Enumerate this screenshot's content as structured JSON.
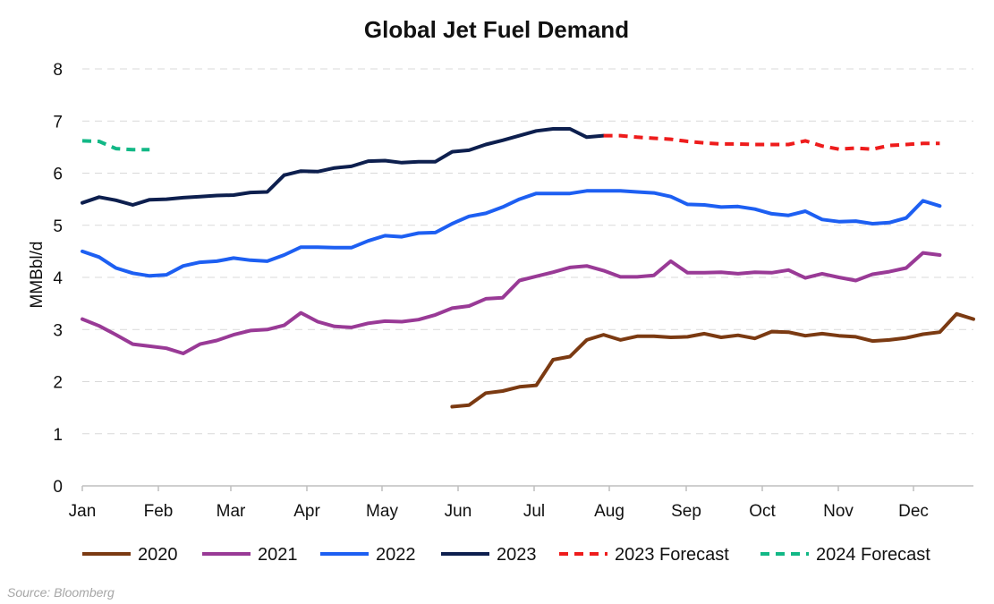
{
  "chart_data": {
    "type": "line",
    "title": "Global Jet Fuel Demand",
    "xlabel": "",
    "ylabel": "MMBbl/d",
    "ylim": [
      0,
      8
    ],
    "yticks": [
      0,
      1,
      2,
      3,
      4,
      5,
      6,
      7,
      8
    ],
    "month_labels": [
      "Jan",
      "Feb",
      "Mar",
      "Apr",
      "May",
      "Jun",
      "Jul",
      "Aug",
      "Sep",
      "Oct",
      "Nov",
      "Dec"
    ],
    "x_unit": "week of year",
    "grid": "horizontal dashed",
    "legend_position": "bottom",
    "source": "Source: Bloomberg",
    "series": [
      {
        "name": "2020",
        "color": "#7b3a12",
        "dashed": false,
        "points": [
          [
            23,
            1.52
          ],
          [
            24,
            1.55
          ],
          [
            25,
            1.78
          ],
          [
            26,
            1.82
          ],
          [
            27,
            1.9
          ],
          [
            28,
            1.93
          ],
          [
            29,
            2.42
          ],
          [
            30,
            2.48
          ],
          [
            31,
            2.8
          ],
          [
            32,
            2.9
          ],
          [
            33,
            2.8
          ],
          [
            34,
            2.87
          ],
          [
            35,
            2.87
          ],
          [
            36,
            2.85
          ],
          [
            37,
            2.86
          ],
          [
            38,
            2.92
          ],
          [
            39,
            2.85
          ],
          [
            40,
            2.89
          ],
          [
            41,
            2.83
          ],
          [
            42,
            2.96
          ],
          [
            43,
            2.95
          ],
          [
            44,
            2.88
          ],
          [
            45,
            2.92
          ],
          [
            46,
            2.88
          ],
          [
            47,
            2.86
          ],
          [
            48,
            2.78
          ],
          [
            49,
            2.8
          ],
          [
            50,
            2.84
          ],
          [
            51,
            2.91
          ],
          [
            52,
            2.95
          ],
          [
            53,
            3.3
          ],
          [
            54,
            3.2
          ]
        ]
      },
      {
        "name": "2021",
        "color": "#993a96",
        "dashed": false,
        "points": [
          [
            1,
            3.2
          ],
          [
            2,
            3.07
          ],
          [
            3,
            2.9
          ],
          [
            4,
            2.72
          ],
          [
            5,
            2.68
          ],
          [
            6,
            2.64
          ],
          [
            7,
            2.54
          ],
          [
            8,
            2.72
          ],
          [
            9,
            2.79
          ],
          [
            10,
            2.9
          ],
          [
            11,
            2.98
          ],
          [
            12,
            3.0
          ],
          [
            13,
            3.08
          ],
          [
            14,
            3.32
          ],
          [
            15,
            3.15
          ],
          [
            16,
            3.06
          ],
          [
            17,
            3.04
          ],
          [
            18,
            3.12
          ],
          [
            19,
            3.16
          ],
          [
            20,
            3.15
          ],
          [
            21,
            3.19
          ],
          [
            22,
            3.28
          ],
          [
            23,
            3.41
          ],
          [
            24,
            3.45
          ],
          [
            25,
            3.59
          ],
          [
            26,
            3.61
          ],
          [
            27,
            3.94
          ],
          [
            28,
            4.02
          ],
          [
            29,
            4.1
          ],
          [
            30,
            4.19
          ],
          [
            31,
            4.22
          ],
          [
            32,
            4.13
          ],
          [
            33,
            4.01
          ],
          [
            34,
            4.01
          ],
          [
            35,
            4.04
          ],
          [
            36,
            4.31
          ],
          [
            37,
            4.09
          ],
          [
            38,
            4.09
          ],
          [
            39,
            4.1
          ],
          [
            40,
            4.07
          ],
          [
            41,
            4.1
          ],
          [
            42,
            4.09
          ],
          [
            43,
            4.14
          ],
          [
            44,
            3.99
          ],
          [
            45,
            4.07
          ],
          [
            46,
            4.0
          ],
          [
            47,
            3.94
          ],
          [
            48,
            4.06
          ],
          [
            49,
            4.11
          ],
          [
            50,
            4.18
          ],
          [
            51,
            4.47
          ],
          [
            52,
            4.43
          ]
        ]
      },
      {
        "name": "2022",
        "color": "#1d5ff2",
        "dashed": false,
        "points": [
          [
            1,
            4.5
          ],
          [
            2,
            4.39
          ],
          [
            3,
            4.18
          ],
          [
            4,
            4.08
          ],
          [
            5,
            4.03
          ],
          [
            6,
            4.05
          ],
          [
            7,
            4.22
          ],
          [
            8,
            4.29
          ],
          [
            9,
            4.31
          ],
          [
            10,
            4.37
          ],
          [
            11,
            4.33
          ],
          [
            12,
            4.31
          ],
          [
            13,
            4.43
          ],
          [
            14,
            4.58
          ],
          [
            15,
            4.58
          ],
          [
            16,
            4.57
          ],
          [
            17,
            4.57
          ],
          [
            18,
            4.7
          ],
          [
            19,
            4.8
          ],
          [
            20,
            4.78
          ],
          [
            21,
            4.85
          ],
          [
            22,
            4.86
          ],
          [
            23,
            5.03
          ],
          [
            24,
            5.17
          ],
          [
            25,
            5.23
          ],
          [
            26,
            5.35
          ],
          [
            27,
            5.5
          ],
          [
            28,
            5.61
          ],
          [
            29,
            5.61
          ],
          [
            30,
            5.61
          ],
          [
            31,
            5.66
          ],
          [
            32,
            5.66
          ],
          [
            33,
            5.66
          ],
          [
            34,
            5.64
          ],
          [
            35,
            5.62
          ],
          [
            36,
            5.55
          ],
          [
            37,
            5.4
          ],
          [
            38,
            5.39
          ],
          [
            39,
            5.35
          ],
          [
            40,
            5.36
          ],
          [
            41,
            5.31
          ],
          [
            42,
            5.22
          ],
          [
            43,
            5.19
          ],
          [
            44,
            5.27
          ],
          [
            45,
            5.11
          ],
          [
            46,
            5.07
          ],
          [
            47,
            5.08
          ],
          [
            48,
            5.03
          ],
          [
            49,
            5.05
          ],
          [
            50,
            5.14
          ],
          [
            51,
            5.47
          ],
          [
            52,
            5.37
          ]
        ]
      },
      {
        "name": "2023",
        "color": "#0d1f4e",
        "dashed": false,
        "points": [
          [
            1,
            5.43
          ],
          [
            2,
            5.54
          ],
          [
            3,
            5.48
          ],
          [
            4,
            5.39
          ],
          [
            5,
            5.49
          ],
          [
            6,
            5.5
          ],
          [
            7,
            5.53
          ],
          [
            8,
            5.55
          ],
          [
            9,
            5.57
          ],
          [
            10,
            5.58
          ],
          [
            11,
            5.63
          ],
          [
            12,
            5.64
          ],
          [
            13,
            5.96
          ],
          [
            14,
            6.04
          ],
          [
            15,
            6.03
          ],
          [
            16,
            6.1
          ],
          [
            17,
            6.13
          ],
          [
            18,
            6.23
          ],
          [
            19,
            6.24
          ],
          [
            20,
            6.2
          ],
          [
            21,
            6.22
          ],
          [
            22,
            6.22
          ],
          [
            23,
            6.41
          ],
          [
            24,
            6.44
          ],
          [
            25,
            6.55
          ],
          [
            26,
            6.63
          ],
          [
            27,
            6.72
          ],
          [
            28,
            6.81
          ],
          [
            29,
            6.85
          ],
          [
            30,
            6.85
          ],
          [
            31,
            6.69
          ],
          [
            32,
            6.72
          ]
        ]
      },
      {
        "name": "2023 Forecast",
        "color": "#ee1c1c",
        "dashed": true,
        "points": [
          [
            32,
            6.72
          ],
          [
            33,
            6.72
          ],
          [
            34,
            6.69
          ],
          [
            35,
            6.67
          ],
          [
            36,
            6.65
          ],
          [
            37,
            6.61
          ],
          [
            38,
            6.58
          ],
          [
            39,
            6.56
          ],
          [
            40,
            6.56
          ],
          [
            41,
            6.55
          ],
          [
            42,
            6.55
          ],
          [
            43,
            6.55
          ],
          [
            44,
            6.62
          ],
          [
            45,
            6.52
          ],
          [
            46,
            6.46
          ],
          [
            47,
            6.48
          ],
          [
            48,
            6.46
          ],
          [
            49,
            6.53
          ],
          [
            50,
            6.55
          ],
          [
            51,
            6.57
          ],
          [
            52,
            6.57
          ]
        ]
      },
      {
        "name": "2024 Forecast",
        "color": "#12b886",
        "dashed": true,
        "points": [
          [
            1,
            6.62
          ],
          [
            2,
            6.61
          ],
          [
            3,
            6.47
          ],
          [
            4,
            6.45
          ],
          [
            5,
            6.45
          ]
        ]
      }
    ]
  }
}
